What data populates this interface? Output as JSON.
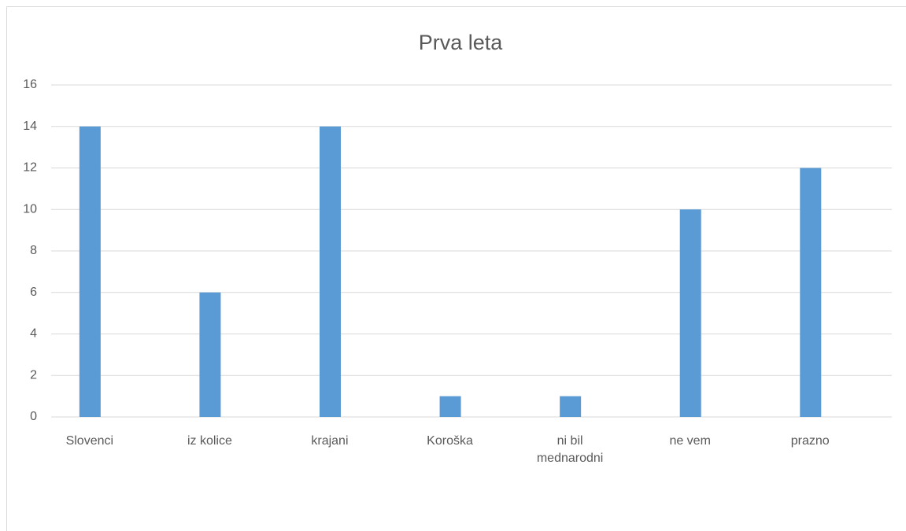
{
  "chart_data": {
    "type": "bar",
    "title": "Prva leta",
    "categories": [
      "Slovenci",
      "iz kolice",
      "krajani",
      "Koroška",
      "ni bil mednarodni",
      "ne vem",
      "prazno"
    ],
    "values": [
      14,
      6,
      14,
      1,
      1,
      10,
      12
    ],
    "color": "#5b9bd5",
    "ylim": [
      0,
      16
    ],
    "yticks": [
      0,
      2,
      4,
      6,
      8,
      10,
      12,
      14,
      16
    ],
    "grid": true
  }
}
